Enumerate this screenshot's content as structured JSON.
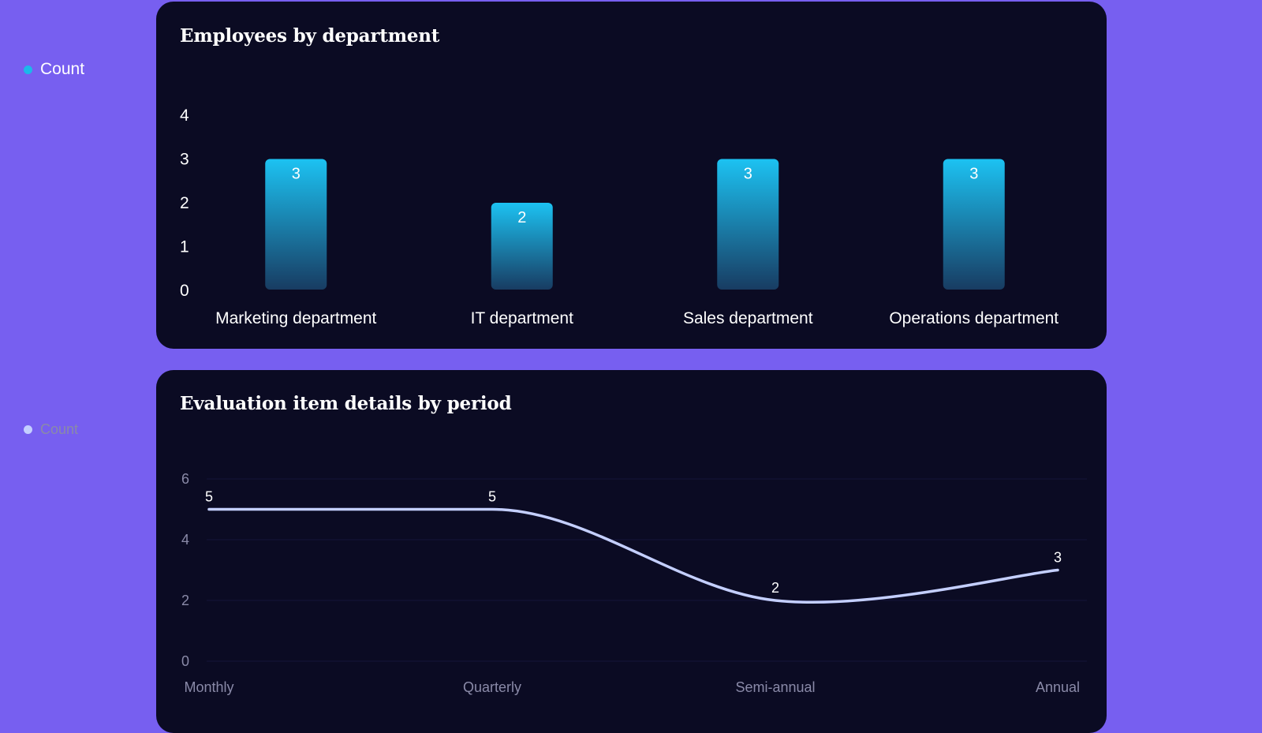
{
  "page": {
    "background_color": "#775ff0",
    "card_color": "#0b0b23"
  },
  "chart_data": [
    {
      "type": "bar",
      "title": "Employees by department",
      "legend": {
        "label": "Count",
        "color": "#1cb8ea",
        "placement": "top-left"
      },
      "categories": [
        "Marketing department",
        "IT department",
        "Sales department",
        "Operations department"
      ],
      "series": [
        {
          "name": "Count",
          "values": [
            3,
            2,
            3,
            3
          ]
        }
      ],
      "ylim": [
        0,
        4
      ],
      "yticks": [
        0,
        1,
        2,
        3,
        4
      ],
      "data_labels": true,
      "grid": false,
      "bar_gradient": [
        "#1cc2f2",
        "#183c62"
      ]
    },
    {
      "type": "line",
      "title": "Evaluation item details by period",
      "legend": {
        "label": "Count",
        "color": "#c4cfff",
        "placement": "top-left"
      },
      "categories": [
        "Monthly",
        "Quarterly",
        "Semi-annual",
        "Annual"
      ],
      "series": [
        {
          "name": "Count",
          "values": [
            5,
            5,
            2,
            3
          ]
        }
      ],
      "ylim": [
        0,
        6
      ],
      "yticks": [
        0,
        2,
        4,
        6
      ],
      "data_labels": true,
      "grid": true,
      "smooth": true,
      "line_color": "#c4cfff"
    }
  ]
}
